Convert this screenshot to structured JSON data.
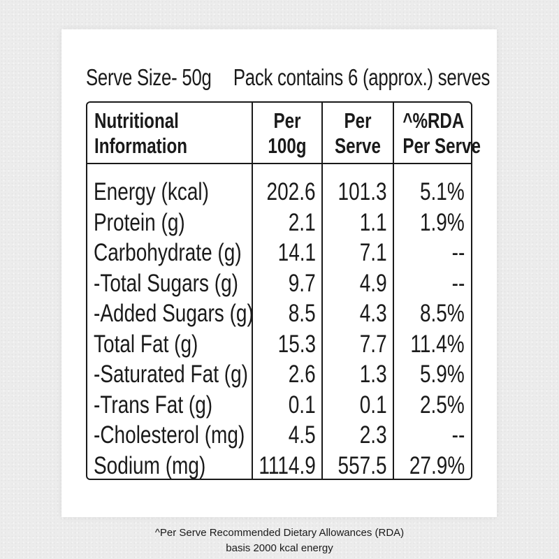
{
  "serving": {
    "serve_size": "Serve Size- 50g",
    "pack_contains": "Pack contains 6 (approx.) serves"
  },
  "table": {
    "headers": {
      "col1": [
        "Nutritional",
        "Information"
      ],
      "col2": [
        "Per",
        "100g"
      ],
      "col3": [
        "Per",
        "Serve"
      ],
      "col4": [
        "^%RDA",
        "Per Serve"
      ]
    },
    "rows": [
      {
        "name": "Energy (kcal)",
        "per100": "202.6",
        "perserve": "101.3",
        "rda": "5.1%"
      },
      {
        "name": "Protein (g)",
        "per100": "2.1",
        "perserve": "1.1",
        "rda": "1.9%"
      },
      {
        "name": "Carbohydrate (g)",
        "per100": "14.1",
        "perserve": "7.1",
        "rda": "--"
      },
      {
        "name": "-Total Sugars (g)",
        "per100": "9.7",
        "perserve": "4.9",
        "rda": "--"
      },
      {
        "name": "-Added Sugars (g)",
        "per100": "8.5",
        "perserve": "4.3",
        "rda": "8.5%"
      },
      {
        "name": "Total Fat (g)",
        "per100": "15.3",
        "perserve": "7.7",
        "rda": "11.4%"
      },
      {
        "name": "-Saturated Fat (g)",
        "per100": "2.6",
        "perserve": "1.3",
        "rda": "5.9%"
      },
      {
        "name": "-Trans Fat (g)",
        "per100": "0.1",
        "perserve": "0.1",
        "rda": "2.5%"
      },
      {
        "name": "-Cholesterol (mg)",
        "per100": "4.5",
        "perserve": "2.3",
        "rda": "--"
      },
      {
        "name": "Sodium (mg)",
        "per100": "1114.9",
        "perserve": "557.5",
        "rda": "27.9%"
      }
    ]
  },
  "footnote": {
    "line1": "^Per Serve Recommended Dietary Allowances (RDA)",
    "line2": "basis 2000 kcal energy"
  }
}
